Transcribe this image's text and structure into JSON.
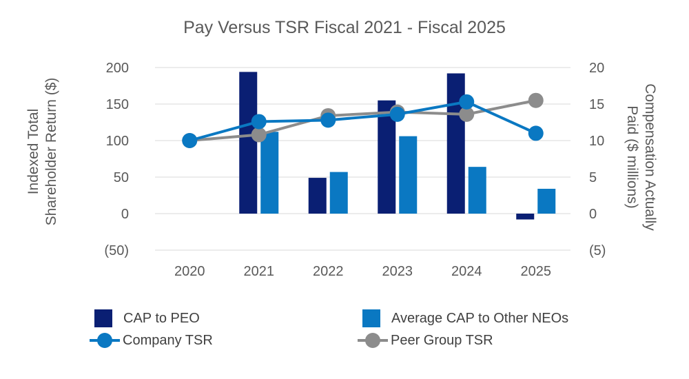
{
  "chart_data": {
    "type": "bar",
    "title": "Pay Versus TSR Fiscal 2021 - Fiscal 2025",
    "categories": [
      "2020",
      "2021",
      "2022",
      "2023",
      "2024",
      "2025"
    ],
    "ylabel": "Indexed Total Shareholder Return ($)",
    "y2label": "Compensation Actually Paid ($ millions)",
    "ylim": [
      -50,
      200
    ],
    "y2lim": [
      -5,
      20
    ],
    "yticks": [
      {
        "value": 200,
        "label": "200"
      },
      {
        "value": 150,
        "label": "150"
      },
      {
        "value": 100,
        "label": "100"
      },
      {
        "value": 50,
        "label": "50"
      },
      {
        "value": 0,
        "label": "0"
      },
      {
        "value": -50,
        "label": "(50)"
      }
    ],
    "y2ticks": [
      {
        "value": 20,
        "label": "20"
      },
      {
        "value": 15,
        "label": "15"
      },
      {
        "value": 10,
        "label": "10"
      },
      {
        "value": 5,
        "label": "5"
      },
      {
        "value": 0,
        "label": "0"
      },
      {
        "value": -5,
        "label": "(5)"
      }
    ],
    "grid": true,
    "series": [
      {
        "name": "CAP to PEO",
        "kind": "bar",
        "axis": "right",
        "color": "#0A1F73",
        "values": [
          null,
          19.4,
          4.9,
          15.5,
          19.2,
          -0.8
        ]
      },
      {
        "name": "Average CAP to Other NEOs",
        "kind": "bar",
        "axis": "right",
        "color": "#0A78C2",
        "values": [
          null,
          11.2,
          5.7,
          10.6,
          6.4,
          3.4
        ]
      },
      {
        "name": "Company TSR",
        "kind": "line",
        "axis": "left",
        "color": "#0A78C2",
        "values": [
          100,
          126,
          128,
          136,
          153,
          110
        ]
      },
      {
        "name": "Peer Group TSR",
        "kind": "line",
        "axis": "left",
        "color": "#8C8C8C",
        "values": [
          100,
          108,
          134,
          139,
          136,
          155
        ]
      }
    ],
    "legend_position": "bottom"
  }
}
